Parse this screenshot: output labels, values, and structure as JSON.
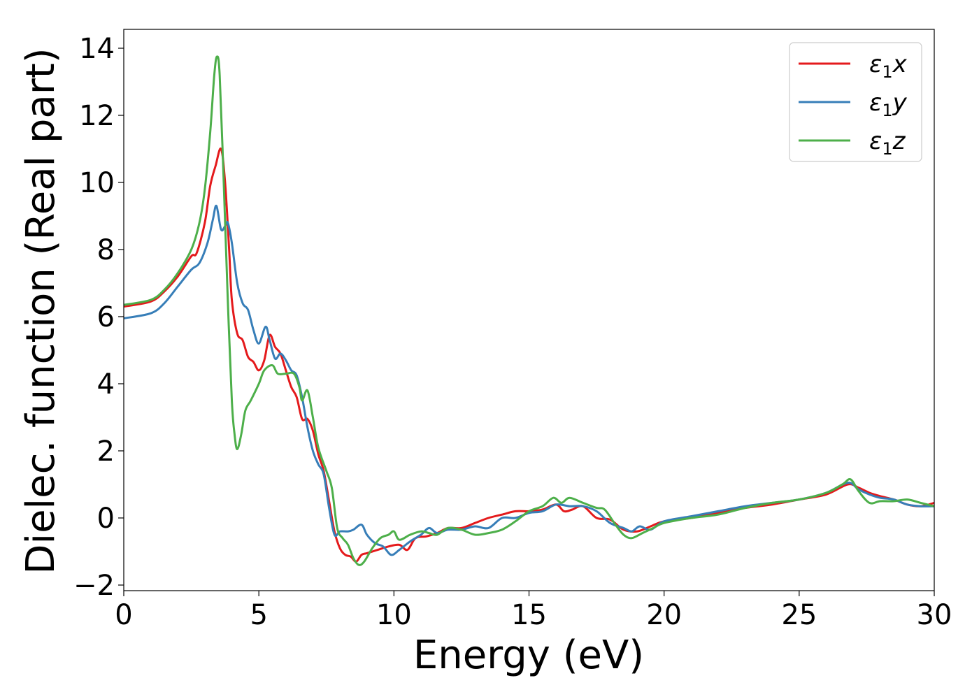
{
  "chart_data": {
    "type": "line",
    "xlabel": "Energy (eV)",
    "ylabel": "Dielec. function (Real part)",
    "xlim": [
      0,
      30
    ],
    "ylim": [
      -2.2,
      14.5
    ],
    "xticks": [
      0,
      5,
      10,
      15,
      20,
      25,
      30
    ],
    "yticks": [
      -2,
      0,
      2,
      4,
      6,
      8,
      10,
      12,
      14
    ],
    "ytick_labels": [
      "−2",
      "0",
      "2",
      "4",
      "6",
      "8",
      "10",
      "12",
      "14"
    ],
    "grid": false,
    "legend_position": "top-right",
    "series": [
      {
        "name": "ε₁x",
        "legend": {
          "base": "ε",
          "sub": "1",
          "var": "x"
        },
        "color": "#e41a1c",
        "x": [
          0,
          1,
          1.5,
          2,
          2.5,
          2.7,
          3.0,
          3.2,
          3.4,
          3.6,
          3.75,
          3.9,
          4.0,
          4.2,
          4.4,
          4.6,
          4.8,
          5.0,
          5.2,
          5.4,
          5.6,
          5.8,
          6.0,
          6.2,
          6.4,
          6.6,
          6.8,
          7.0,
          7.2,
          7.4,
          7.6,
          7.8,
          8.0,
          8.2,
          8.4,
          8.6,
          8.8,
          9.0,
          9.4,
          9.8,
          10.2,
          10.5,
          10.8,
          11.2,
          11.6,
          12.0,
          12.5,
          13,
          13.5,
          14,
          14.5,
          15,
          15.5,
          16,
          16.3,
          16.6,
          17,
          17.5,
          18,
          18.5,
          19,
          19.5,
          20,
          21,
          22,
          23,
          24,
          25,
          26,
          26.8,
          27.2,
          27.6,
          28,
          28.5,
          29,
          29.5,
          30
        ],
        "y": [
          6.3,
          6.45,
          6.75,
          7.2,
          7.8,
          7.9,
          8.8,
          9.9,
          10.5,
          11.0,
          10.0,
          8.0,
          6.5,
          5.5,
          5.3,
          4.8,
          4.65,
          4.4,
          4.7,
          5.45,
          5.1,
          4.9,
          4.4,
          3.9,
          3.6,
          2.95,
          2.95,
          2.6,
          1.9,
          1.4,
          0.5,
          -0.4,
          -0.9,
          -1.1,
          -1.15,
          -1.3,
          -1.1,
          -1.05,
          -0.95,
          -0.85,
          -0.8,
          -0.95,
          -0.6,
          -0.55,
          -0.45,
          -0.3,
          -0.3,
          -0.15,
          0.0,
          0.1,
          0.2,
          0.2,
          0.25,
          0.4,
          0.2,
          0.25,
          0.35,
          0.0,
          -0.05,
          -0.35,
          -0.4,
          -0.25,
          -0.1,
          0.0,
          0.15,
          0.3,
          0.4,
          0.55,
          0.7,
          1.0,
          0.9,
          0.75,
          0.65,
          0.55,
          0.4,
          0.35,
          0.45
        ]
      },
      {
        "name": "ε₁y",
        "legend": {
          "base": "ε",
          "sub": "1",
          "var": "y"
        },
        "color": "#377eb8",
        "x": [
          0,
          1,
          1.5,
          2,
          2.5,
          2.8,
          3.1,
          3.3,
          3.43,
          3.6,
          3.75,
          3.85,
          4.0,
          4.2,
          4.4,
          4.6,
          4.8,
          5.0,
          5.25,
          5.4,
          5.6,
          5.8,
          6.0,
          6.2,
          6.4,
          6.6,
          6.8,
          7.0,
          7.2,
          7.4,
          7.6,
          7.8,
          8.0,
          8.3,
          8.5,
          8.8,
          9.0,
          9.3,
          9.6,
          9.9,
          10.2,
          10.6,
          11,
          11.3,
          11.6,
          12,
          12.5,
          13,
          13.5,
          14,
          14.5,
          15,
          15.5,
          16,
          16.5,
          17,
          17.5,
          18,
          18.5,
          18.8,
          19.1,
          19.5,
          20,
          21,
          22,
          23,
          24,
          25,
          26,
          26.8,
          27.2,
          27.6,
          28,
          28.5,
          29,
          29.5,
          30
        ],
        "y": [
          5.95,
          6.1,
          6.4,
          6.9,
          7.4,
          7.6,
          8.2,
          8.9,
          9.3,
          8.6,
          8.7,
          8.8,
          8.2,
          7.0,
          6.4,
          6.2,
          5.6,
          5.2,
          5.7,
          5.3,
          4.75,
          4.9,
          4.7,
          4.4,
          4.25,
          3.6,
          2.7,
          2.0,
          1.6,
          1.3,
          0.3,
          -0.5,
          -0.4,
          -0.4,
          -0.35,
          -0.2,
          -0.5,
          -0.75,
          -0.85,
          -1.1,
          -0.95,
          -0.7,
          -0.5,
          -0.3,
          -0.45,
          -0.35,
          -0.35,
          -0.25,
          -0.3,
          0.0,
          0.0,
          0.15,
          0.2,
          0.4,
          0.35,
          0.35,
          0.2,
          -0.15,
          -0.3,
          -0.4,
          -0.25,
          -0.35,
          -0.1,
          0.05,
          0.2,
          0.35,
          0.45,
          0.55,
          0.75,
          1.05,
          0.85,
          0.7,
          0.6,
          0.55,
          0.4,
          0.35,
          0.35
        ]
      },
      {
        "name": "ε₁z",
        "legend": {
          "base": "ε",
          "sub": "1",
          "var": "z"
        },
        "color": "#4daf4a",
        "x": [
          0,
          1,
          1.5,
          2,
          2.5,
          2.8,
          3.0,
          3.2,
          3.35,
          3.45,
          3.55,
          3.7,
          3.85,
          4.0,
          4.1,
          4.2,
          4.35,
          4.5,
          4.7,
          5.0,
          5.2,
          5.5,
          5.7,
          6.0,
          6.3,
          6.5,
          6.6,
          6.8,
          7.0,
          7.2,
          7.5,
          7.7,
          7.9,
          8.1,
          8.3,
          8.5,
          8.7,
          8.9,
          9.2,
          9.5,
          9.8,
          10.0,
          10.2,
          10.6,
          11,
          11.3,
          11.6,
          12,
          12.5,
          13,
          13.5,
          14,
          14.5,
          15,
          15.5,
          15.9,
          16.2,
          16.5,
          17,
          17.5,
          17.8,
          18.2,
          18.5,
          18.8,
          19.2,
          19.6,
          20,
          21,
          22,
          23,
          24,
          25,
          26,
          26.6,
          26.9,
          27.2,
          27.6,
          28,
          28.5,
          29,
          29.5,
          30
        ],
        "y": [
          6.35,
          6.5,
          6.8,
          7.3,
          8.0,
          8.8,
          9.8,
          11.5,
          13.2,
          13.75,
          13.2,
          10.0,
          6.5,
          3.5,
          2.5,
          2.05,
          2.5,
          3.2,
          3.5,
          4.0,
          4.4,
          4.55,
          4.3,
          4.3,
          4.3,
          3.9,
          3.5,
          3.8,
          3.0,
          2.1,
          1.4,
          0.9,
          -0.3,
          -0.6,
          -0.8,
          -1.2,
          -1.4,
          -1.3,
          -0.9,
          -0.6,
          -0.5,
          -0.4,
          -0.65,
          -0.5,
          -0.4,
          -0.45,
          -0.5,
          -0.3,
          -0.35,
          -0.5,
          -0.45,
          -0.35,
          -0.1,
          0.2,
          0.35,
          0.6,
          0.45,
          0.6,
          0.45,
          0.3,
          0.25,
          -0.2,
          -0.5,
          -0.6,
          -0.45,
          -0.3,
          -0.15,
          0.0,
          0.1,
          0.3,
          0.45,
          0.55,
          0.75,
          1.0,
          1.15,
          0.8,
          0.45,
          0.5,
          0.5,
          0.55,
          0.45,
          0.35
        ]
      }
    ]
  }
}
